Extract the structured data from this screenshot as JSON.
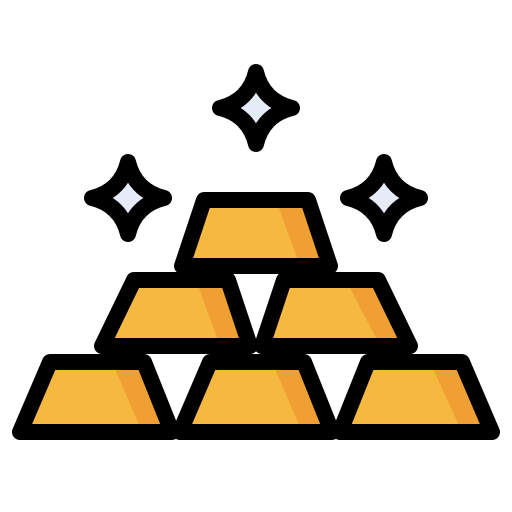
{
  "icon": {
    "name": "gold-bars-sparkle-icon",
    "colors": {
      "outline": "#000000",
      "gold_light": "#F6B940",
      "gold_dark": "#F0A033",
      "sparkle_fill": "#E6EBF8",
      "background": "#FFFFFF"
    },
    "parts": [
      "sparkle",
      "sparkle",
      "sparkle",
      "gold-bar",
      "gold-bar",
      "gold-bar",
      "gold-bar",
      "gold-bar",
      "gold-bar"
    ]
  }
}
